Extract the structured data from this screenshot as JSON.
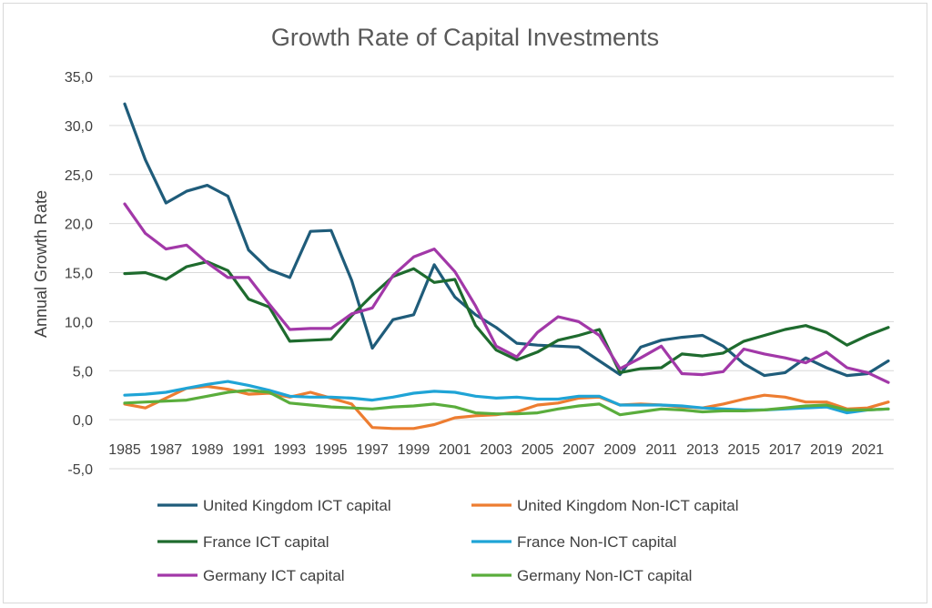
{
  "chart_data": {
    "type": "line",
    "title": "Growth Rate of Capital Investments",
    "xlabel": "",
    "ylabel": "Annual Growth Rate",
    "ylim": [
      -5,
      35
    ],
    "yticks": [
      "-5,0",
      "0,0",
      "5,0",
      "10,0",
      "15,0",
      "20,0",
      "25,0",
      "30,0",
      "35,0"
    ],
    "ytick_values": [
      -5,
      0,
      5,
      10,
      15,
      20,
      25,
      30,
      35
    ],
    "x": [
      1985,
      1986,
      1987,
      1988,
      1989,
      1990,
      1991,
      1992,
      1993,
      1994,
      1995,
      1996,
      1997,
      1998,
      1999,
      2000,
      2001,
      2002,
      2003,
      2004,
      2005,
      2006,
      2007,
      2008,
      2009,
      2010,
      2011,
      2012,
      2013,
      2014,
      2015,
      2016,
      2017,
      2018,
      2019,
      2020,
      2021,
      2022
    ],
    "xtick_labels": [
      "1985",
      "1987",
      "1989",
      "1991",
      "1993",
      "1995",
      "1997",
      "1999",
      "2001",
      "2003",
      "2005",
      "2007",
      "2009",
      "2011",
      "2013",
      "2015",
      "2017",
      "2019",
      "2021"
    ],
    "grid": true,
    "legend_position": "bottom",
    "series": [
      {
        "name": "United Kingdom   ICT capital",
        "color": "#1f5c7a",
        "values": [
          32.2,
          26.5,
          22.1,
          23.3,
          23.9,
          22.8,
          17.3,
          15.3,
          14.5,
          19.2,
          19.3,
          14.2,
          7.3,
          10.2,
          10.7,
          15.8,
          12.5,
          10.7,
          9.4,
          7.8,
          7.6,
          7.5,
          7.4,
          6.0,
          4.6,
          7.4,
          8.1,
          8.4,
          8.6,
          7.5,
          5.7,
          4.5,
          4.8,
          6.3,
          5.3,
          4.5,
          4.7,
          6.0
        ]
      },
      {
        "name": "United Kingdom   Non-ICT capital",
        "color": "#ed7d31",
        "values": [
          1.6,
          1.2,
          2.2,
          3.2,
          3.4,
          3.1,
          2.6,
          2.7,
          2.3,
          2.8,
          2.2,
          1.6,
          -0.8,
          -0.9,
          -0.9,
          -0.5,
          0.2,
          0.4,
          0.5,
          0.8,
          1.5,
          1.7,
          2.2,
          2.3,
          1.5,
          1.6,
          1.5,
          1.3,
          1.2,
          1.6,
          2.1,
          2.5,
          2.3,
          1.8,
          1.8,
          1.1,
          1.2,
          1.8
        ]
      },
      {
        "name": "France   ICT capital",
        "color": "#1e6b2e",
        "values": [
          14.9,
          15.0,
          14.3,
          15.6,
          16.1,
          15.2,
          12.3,
          11.5,
          8.0,
          8.1,
          8.2,
          10.6,
          12.7,
          14.6,
          15.4,
          14.0,
          14.3,
          9.6,
          7.1,
          6.1,
          6.9,
          8.1,
          8.6,
          9.2,
          4.8,
          5.2,
          5.3,
          6.7,
          6.5,
          6.8,
          8.0,
          8.6,
          9.2,
          9.6,
          8.9,
          7.6,
          8.6,
          9.4
        ]
      },
      {
        "name": "France   Non-ICT capital",
        "color": "#1fa4d6",
        "values": [
          2.5,
          2.6,
          2.8,
          3.2,
          3.6,
          3.9,
          3.5,
          3.0,
          2.4,
          2.3,
          2.3,
          2.2,
          2.0,
          2.3,
          2.7,
          2.9,
          2.8,
          2.4,
          2.2,
          2.3,
          2.1,
          2.1,
          2.4,
          2.4,
          1.5,
          1.5,
          1.5,
          1.4,
          1.2,
          1.1,
          1.0,
          1.0,
          1.1,
          1.2,
          1.3,
          0.7,
          1.0,
          1.1
        ]
      },
      {
        "name": "Germany   ICT capital",
        "color": "#a238a8",
        "values": [
          22.0,
          19.0,
          17.4,
          17.8,
          16.0,
          14.5,
          14.5,
          11.8,
          9.2,
          9.3,
          9.3,
          10.8,
          11.4,
          14.7,
          16.6,
          17.4,
          15.1,
          11.6,
          7.5,
          6.4,
          8.9,
          10.5,
          10.0,
          8.6,
          5.2,
          6.3,
          7.5,
          4.7,
          4.6,
          4.9,
          7.2,
          6.7,
          6.3,
          5.8,
          6.9,
          5.3,
          4.8,
          3.8
        ]
      },
      {
        "name": "Germany   Non-ICT capital",
        "color": "#5aad3c",
        "values": [
          1.7,
          1.8,
          1.9,
          2.0,
          2.4,
          2.8,
          3.0,
          2.8,
          1.7,
          1.5,
          1.3,
          1.2,
          1.1,
          1.3,
          1.4,
          1.6,
          1.3,
          0.7,
          0.6,
          0.6,
          0.7,
          1.1,
          1.4,
          1.6,
          0.5,
          0.8,
          1.1,
          1.0,
          0.8,
          0.9,
          0.9,
          1.0,
          1.2,
          1.4,
          1.5,
          1.0,
          1.0,
          1.1
        ]
      }
    ]
  }
}
